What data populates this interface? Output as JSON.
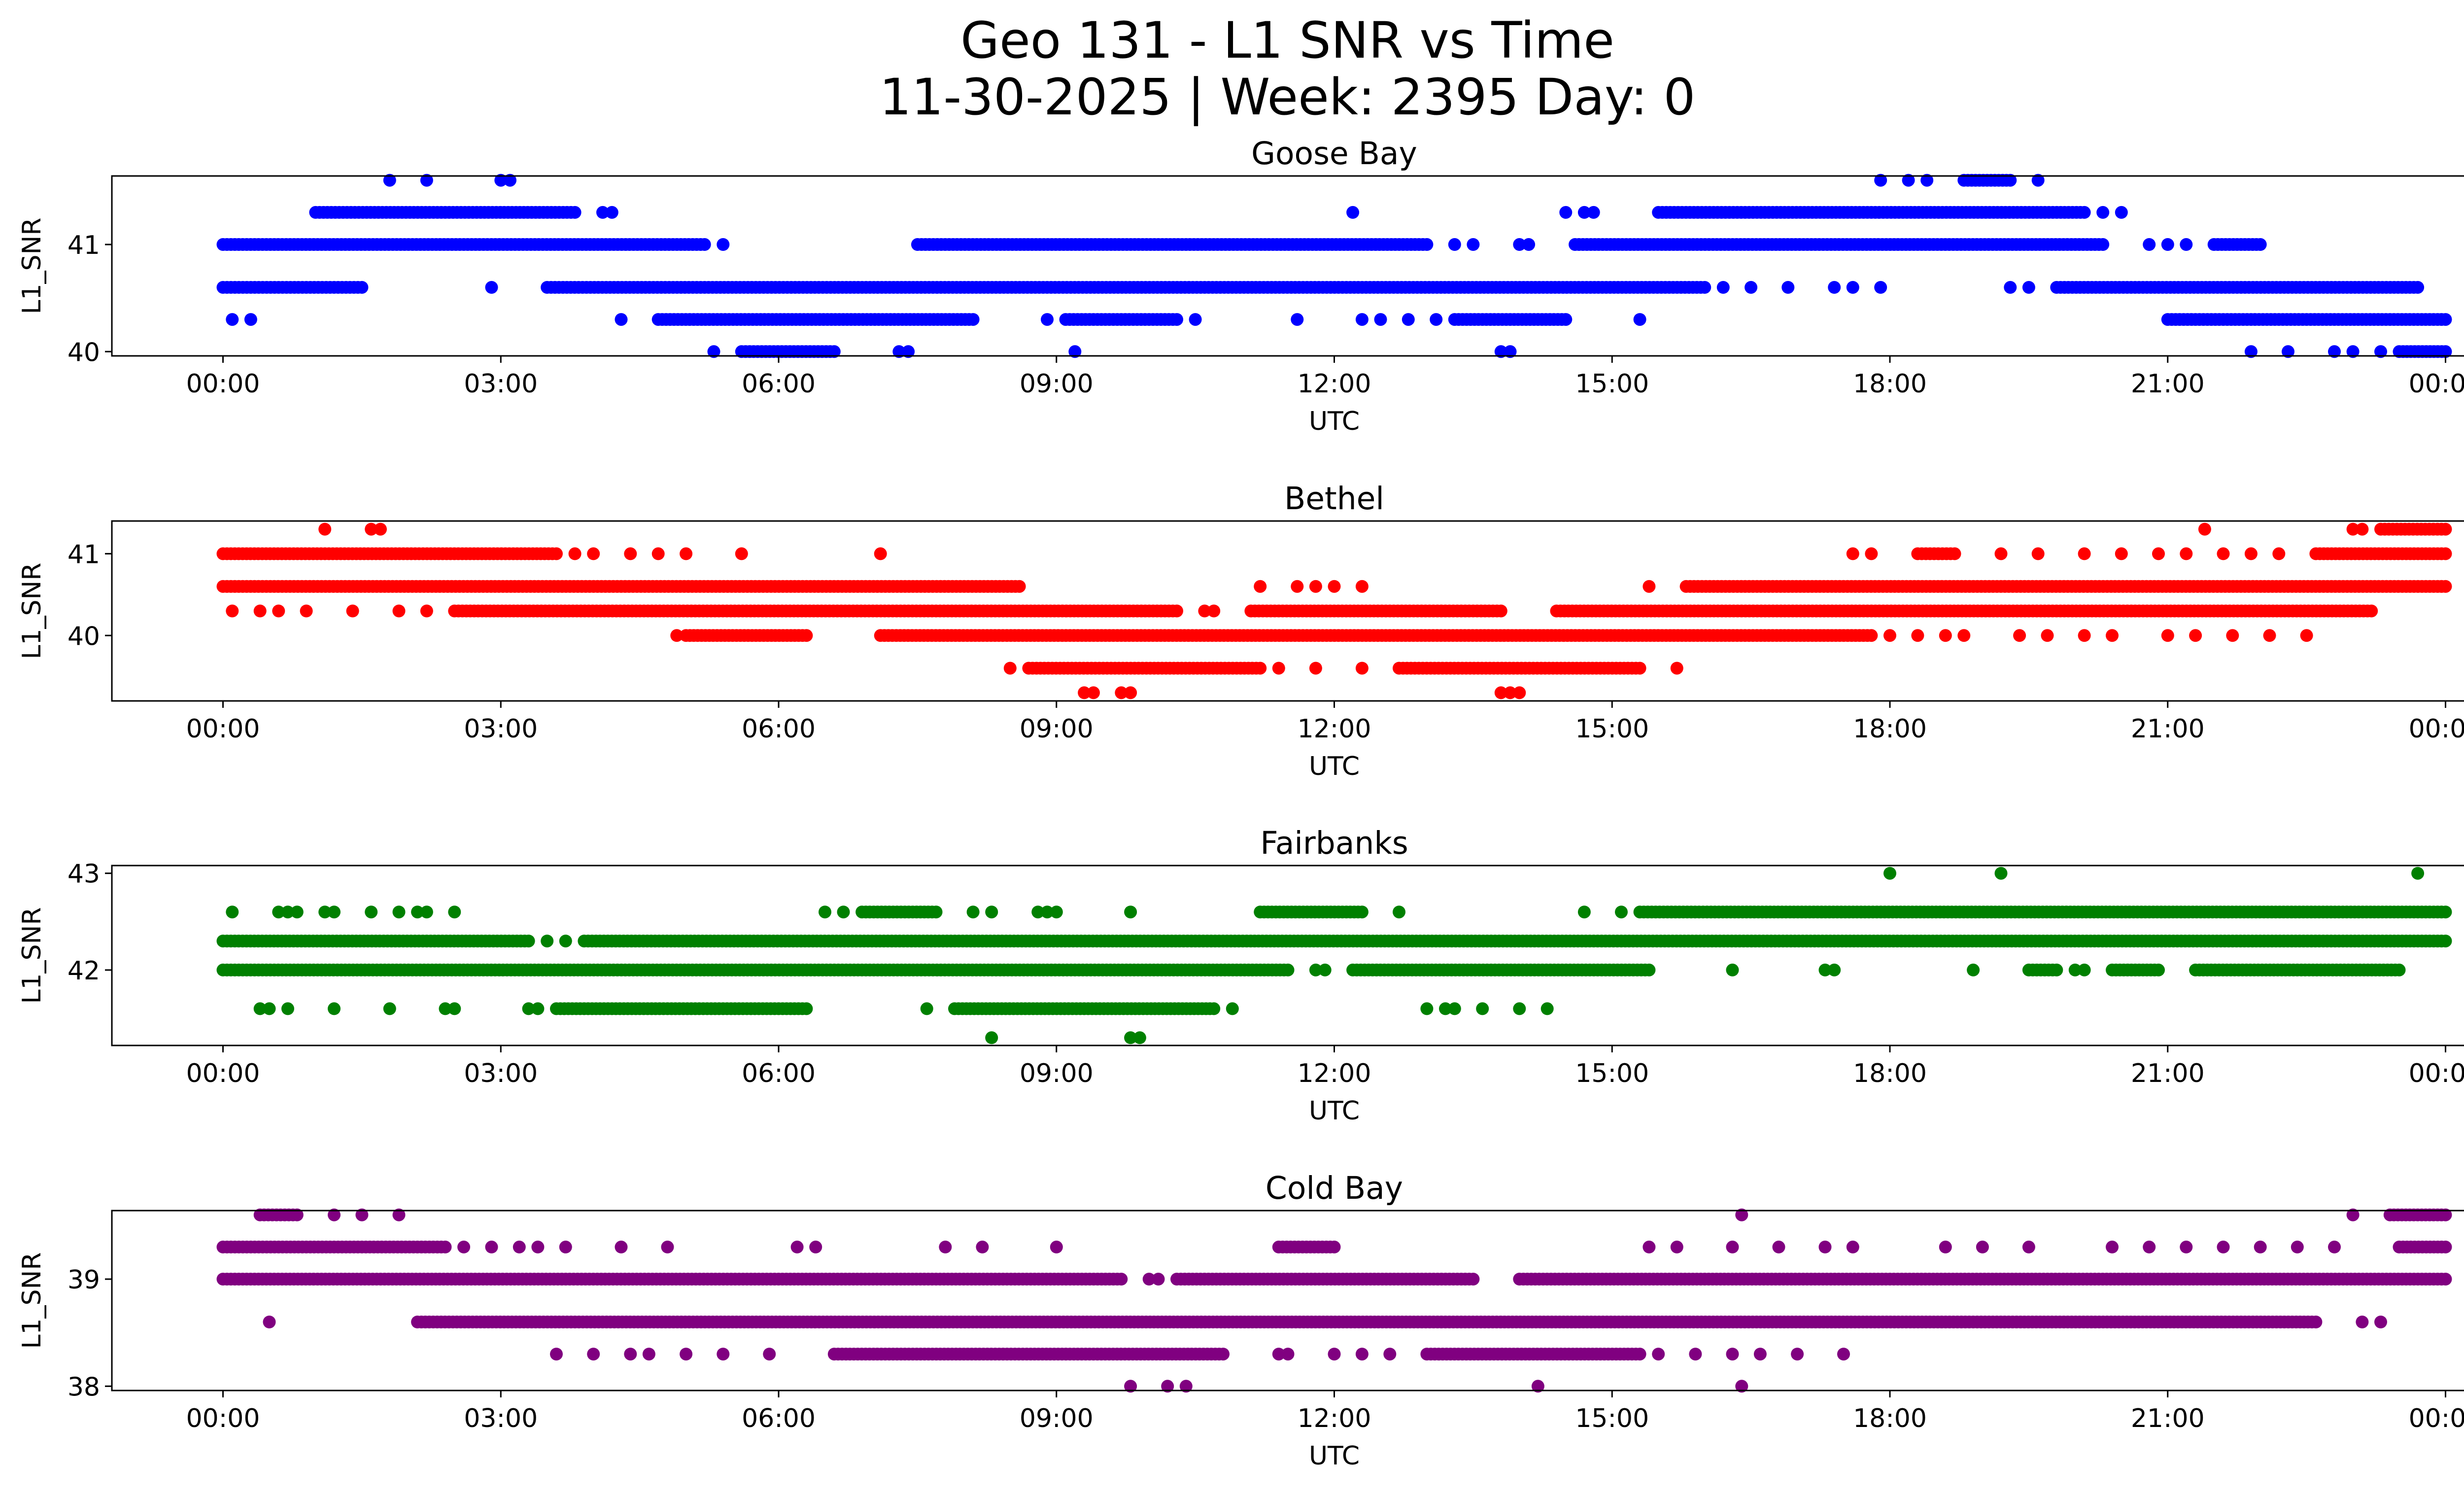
{
  "figure": {
    "title_line1": "Geo 131 - L1 SNR vs Time",
    "title_line2": "11-30-2025 | Week: 2395 Day: 0"
  },
  "chart_data": [
    {
      "type": "scatter",
      "title": "Goose Bay",
      "xlabel": "UTC",
      "ylabel": "L1_SNR",
      "color": "#0000ff",
      "x_unit": "hours UTC",
      "xlim": [
        -1.2,
        25.2
      ],
      "ylim": [
        39.96,
        41.64
      ],
      "xticks": [
        0,
        3,
        6,
        9,
        12,
        15,
        18,
        21,
        24
      ],
      "xtick_labels": [
        "00:00",
        "03:00",
        "06:00",
        "09:00",
        "12:00",
        "15:00",
        "18:00",
        "21:00",
        "00:00"
      ],
      "yticks": [
        40,
        41
      ],
      "ytick_labels": [
        "40",
        "41"
      ],
      "dense_bands": [
        {
          "y": 41.6,
          "segments": [
            [
              18.8,
              19.3
            ]
          ]
        },
        {
          "y": 41.3,
          "segments": [
            [
              1.0,
              3.8
            ],
            [
              15.5,
              20.1
            ]
          ]
        },
        {
          "y": 41.0,
          "segments": [
            [
              0.0,
              5.2
            ],
            [
              7.5,
              13.0
            ],
            [
              14.6,
              20.3
            ],
            [
              21.5,
              22.0
            ]
          ]
        },
        {
          "y": 40.6,
          "segments": [
            [
              0.0,
              1.5
            ],
            [
              3.5,
              16.0
            ],
            [
              19.8,
              23.7
            ]
          ]
        },
        {
          "y": 40.3,
          "segments": [
            [
              4.7,
              8.1
            ],
            [
              9.1,
              10.3
            ],
            [
              13.3,
              14.5
            ],
            [
              21.0,
              24.0
            ]
          ]
        },
        {
          "y": 40.0,
          "segments": [
            [
              5.6,
              6.6
            ],
            [
              23.5,
              24.0
            ]
          ]
        }
      ],
      "sparse_points": [
        {
          "y": 41.6,
          "x": [
            1.8,
            2.2,
            3.0,
            3.1,
            17.9,
            18.2,
            18.4,
            19.6
          ]
        },
        {
          "y": 41.3,
          "x": [
            4.1,
            4.2,
            12.2,
            14.5,
            14.7,
            14.8,
            20.3,
            20.5
          ]
        },
        {
          "y": 41.0,
          "x": [
            5.4,
            13.3,
            13.5,
            14.0,
            14.1,
            20.8,
            21.0,
            21.2
          ]
        },
        {
          "y": 40.6,
          "x": [
            2.9,
            16.2,
            16.5,
            16.9,
            17.4,
            17.6,
            17.9,
            19.3,
            19.5
          ]
        },
        {
          "y": 40.3,
          "x": [
            0.1,
            0.3,
            4.3,
            8.9,
            10.5,
            11.6,
            12.3,
            12.5,
            12.8,
            13.1,
            15.3
          ]
        },
        {
          "y": 40.0,
          "x": [
            5.3,
            7.3,
            7.4,
            9.2,
            13.8,
            13.9,
            21.9,
            22.3,
            22.8,
            23.0,
            23.3
          ]
        }
      ]
    },
    {
      "type": "scatter",
      "title": "Bethel",
      "xlabel": "UTC",
      "ylabel": "L1_SNR",
      "color": "#ff0000",
      "x_unit": "hours UTC",
      "xlim": [
        -1.2,
        25.2
      ],
      "ylim": [
        39.2,
        41.4
      ],
      "xticks": [
        0,
        3,
        6,
        9,
        12,
        15,
        18,
        21,
        24
      ],
      "xtick_labels": [
        "00:00",
        "03:00",
        "06:00",
        "09:00",
        "12:00",
        "15:00",
        "18:00",
        "21:00",
        "00:00"
      ],
      "yticks": [
        40,
        41
      ],
      "ytick_labels": [
        "40",
        "41"
      ],
      "dense_bands": [
        {
          "y": 41.3,
          "segments": [
            [
              23.3,
              24.0
            ]
          ]
        },
        {
          "y": 41.0,
          "segments": [
            [
              0.0,
              3.6
            ],
            [
              18.3,
              18.7
            ],
            [
              22.6,
              24.0
            ]
          ]
        },
        {
          "y": 40.6,
          "segments": [
            [
              0.0,
              8.6
            ],
            [
              15.8,
              24.0
            ]
          ]
        },
        {
          "y": 40.3,
          "segments": [
            [
              2.5,
              10.3
            ],
            [
              11.1,
              13.8
            ],
            [
              14.4,
              23.2
            ]
          ]
        },
        {
          "y": 40.0,
          "segments": [
            [
              5.0,
              6.3
            ],
            [
              7.1,
              17.8
            ]
          ]
        },
        {
          "y": 39.6,
          "segments": [
            [
              8.7,
              11.2
            ],
            [
              12.7,
              15.3
            ]
          ]
        }
      ],
      "sparse_points": [
        {
          "y": 41.3,
          "x": [
            1.1,
            1.6,
            1.7,
            21.4,
            23.0,
            23.1
          ]
        },
        {
          "y": 41.0,
          "x": [
            3.8,
            4.0,
            4.4,
            4.7,
            5.0,
            5.6,
            7.1,
            17.6,
            17.8,
            19.2,
            19.6,
            20.1,
            20.5,
            20.9,
            21.2,
            21.6,
            21.9,
            22.2
          ]
        },
        {
          "y": 40.6,
          "x": [
            11.2,
            11.6,
            11.8,
            12.0,
            12.3,
            15.4
          ]
        },
        {
          "y": 40.3,
          "x": [
            0.1,
            0.4,
            0.6,
            0.9,
            1.4,
            1.9,
            2.2,
            10.6,
            10.7
          ]
        },
        {
          "y": 40.0,
          "x": [
            4.9,
            18.0,
            18.3,
            18.6,
            18.8,
            19.4,
            19.7,
            20.1,
            20.4,
            21.0,
            21.3,
            21.7,
            22.1,
            22.5
          ]
        },
        {
          "y": 39.6,
          "x": [
            8.5,
            11.4,
            11.8,
            12.3,
            15.7
          ]
        },
        {
          "y": 39.3,
          "x": [
            9.3,
            9.4,
            9.7,
            9.8,
            13.8,
            13.9,
            14.0
          ]
        }
      ]
    },
    {
      "type": "scatter",
      "title": "Fairbanks",
      "xlabel": "UTC",
      "ylabel": "L1_SNR",
      "color": "#008000",
      "x_unit": "hours UTC",
      "xlim": [
        -1.2,
        25.2
      ],
      "ylim": [
        41.22,
        43.08
      ],
      "xticks": [
        0,
        3,
        6,
        9,
        12,
        15,
        18,
        21,
        24
      ],
      "xtick_labels": [
        "00:00",
        "03:00",
        "06:00",
        "09:00",
        "12:00",
        "15:00",
        "18:00",
        "21:00",
        "00:00"
      ],
      "yticks": [
        42,
        43
      ],
      "ytick_labels": [
        "42",
        "43"
      ],
      "dense_bands": [
        {
          "y": 42.6,
          "segments": [
            [
              6.9,
              7.7
            ],
            [
              11.2,
              12.3
            ],
            [
              15.3,
              24.0
            ]
          ]
        },
        {
          "y": 42.3,
          "segments": [
            [
              0.0,
              3.3
            ],
            [
              3.9,
              24.0
            ]
          ]
        },
        {
          "y": 42.0,
          "segments": [
            [
              0.0,
              11.5
            ],
            [
              12.2,
              15.4
            ],
            [
              19.5,
              19.8
            ],
            [
              20.4,
              20.9
            ],
            [
              21.3,
              23.5
            ]
          ]
        },
        {
          "y": 41.6,
          "segments": [
            [
              3.6,
              6.3
            ],
            [
              7.9,
              10.7
            ]
          ]
        }
      ],
      "sparse_points": [
        {
          "y": 43.0,
          "x": [
            18.0,
            19.2,
            23.7
          ]
        },
        {
          "y": 42.6,
          "x": [
            0.1,
            0.6,
            0.7,
            0.8,
            1.1,
            1.2,
            1.6,
            1.9,
            2.1,
            2.2,
            2.5,
            6.5,
            6.7,
            8.1,
            8.3,
            8.8,
            8.9,
            9.0,
            9.8,
            12.7,
            14.7,
            15.1
          ]
        },
        {
          "y": 42.3,
          "x": [
            3.5,
            3.7
          ]
        },
        {
          "y": 42.0,
          "x": [
            11.8,
            11.9,
            16.3,
            17.3,
            17.4,
            18.9,
            20.0,
            20.1
          ]
        },
        {
          "y": 41.6,
          "x": [
            0.4,
            0.5,
            0.7,
            1.2,
            1.8,
            2.4,
            2.5,
            3.3,
            3.4,
            7.6,
            10.9,
            13.0,
            13.2,
            13.3,
            13.6,
            14.0,
            14.3
          ]
        },
        {
          "y": 41.3,
          "x": [
            8.3,
            9.8,
            9.9
          ]
        }
      ]
    },
    {
      "type": "scatter",
      "title": "Cold Bay",
      "xlabel": "UTC",
      "ylabel": "L1_SNR",
      "color": "#800080",
      "x_unit": "hours UTC",
      "xlim": [
        -1.2,
        25.2
      ],
      "ylim": [
        37.96,
        39.64
      ],
      "xticks": [
        0,
        3,
        6,
        9,
        12,
        15,
        18,
        21,
        24
      ],
      "xtick_labels": [
        "00:00",
        "03:00",
        "06:00",
        "09:00",
        "12:00",
        "15:00",
        "18:00",
        "21:00",
        "00:00"
      ],
      "yticks": [
        38,
        39
      ],
      "ytick_labels": [
        "38",
        "39"
      ],
      "dense_bands": [
        {
          "y": 39.6,
          "segments": [
            [
              0.4,
              0.8
            ],
            [
              23.4,
              24.0
            ]
          ]
        },
        {
          "y": 39.3,
          "segments": [
            [
              0.0,
              2.4
            ],
            [
              11.4,
              12.0
            ],
            [
              23.5,
              24.0
            ]
          ]
        },
        {
          "y": 39.0,
          "segments": [
            [
              0.0,
              9.7
            ],
            [
              10.3,
              13.5
            ],
            [
              14.0,
              24.0
            ]
          ]
        },
        {
          "y": 38.6,
          "segments": [
            [
              2.1,
              22.6
            ]
          ]
        },
        {
          "y": 38.3,
          "segments": [
            [
              6.6,
              10.8
            ],
            [
              13.0,
              15.3
            ]
          ]
        }
      ],
      "sparse_points": [
        {
          "y": 39.6,
          "x": [
            1.2,
            1.5,
            1.9,
            16.4,
            23.0
          ]
        },
        {
          "y": 39.3,
          "x": [
            2.6,
            2.9,
            3.2,
            3.4,
            3.7,
            4.3,
            4.8,
            6.2,
            6.4,
            7.8,
            8.2,
            9.0,
            15.4,
            15.7,
            16.3,
            16.8,
            17.3,
            17.6,
            18.6,
            19.0,
            19.5,
            20.4,
            20.8,
            21.2,
            21.6,
            22.0,
            22.4,
            22.8
          ]
        },
        {
          "y": 39.0,
          "x": [
            10.0,
            10.1
          ]
        },
        {
          "y": 38.6,
          "x": [
            0.5,
            23.1,
            23.3
          ]
        },
        {
          "y": 38.3,
          "x": [
            3.6,
            4.0,
            4.4,
            4.6,
            5.0,
            5.4,
            5.9,
            11.4,
            11.5,
            12.0,
            12.3,
            12.6,
            15.5,
            15.9,
            16.3,
            16.6,
            17.0,
            17.5
          ]
        },
        {
          "y": 38.0,
          "x": [
            9.8,
            10.2,
            10.4,
            14.2,
            16.4
          ]
        }
      ]
    }
  ]
}
